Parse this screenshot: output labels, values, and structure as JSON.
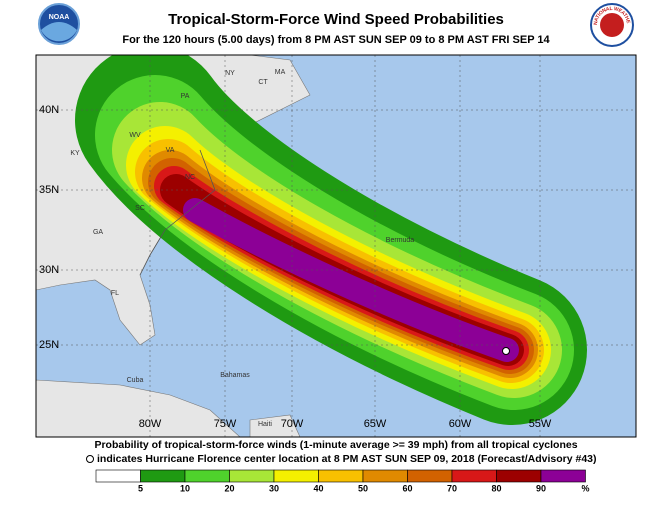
{
  "header": {
    "title": "Tropical-Storm-Force Wind Speed Probabilities",
    "subtitle": "For the 120 hours (5.00 days) from 8 PM AST SUN SEP 09 to 8 PM AST FRI SEP 14",
    "logo_left": "NOAA",
    "logo_right": "NATIONAL WEATHER SERVICE"
  },
  "map": {
    "lat_labels": [
      "40N",
      "35N",
      "30N",
      "25N"
    ],
    "lon_labels": [
      "80W",
      "75W",
      "70W",
      "65W",
      "60W",
      "55W"
    ],
    "places": [
      "PA",
      "NY",
      "MA",
      "CT",
      "WV",
      "VA",
      "KY",
      "NC",
      "SC",
      "GA",
      "FL",
      "Bermuda",
      "Bahamas",
      "Cuba",
      "Haiti"
    ]
  },
  "footer": {
    "line1": "Probability of tropical-storm-force winds (1-minute average >= 39 mph) from all tropical cyclones",
    "line2": "indicates Hurricane Florence center location at 8 PM AST SUN SEP 09, 2018 (Forecast/Advisory #43)"
  },
  "legend": {
    "ticks": [
      5,
      10,
      20,
      30,
      40,
      50,
      60,
      70,
      80,
      90
    ],
    "unit": "%",
    "colors": [
      "#ffffff",
      "#1f9a12",
      "#4fd22c",
      "#a8e637",
      "#f4f000",
      "#f8c000",
      "#e08a00",
      "#d26200",
      "#d81818",
      "#9c0000",
      "#8c0096"
    ]
  }
}
